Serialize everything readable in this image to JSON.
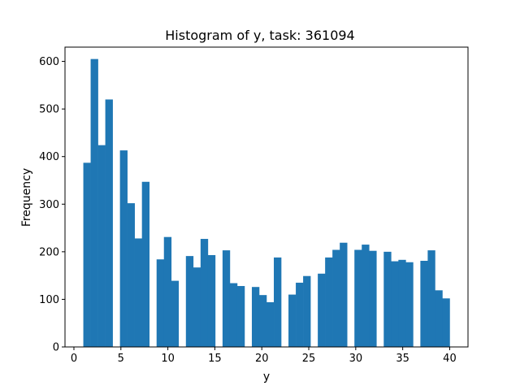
{
  "chart_data": {
    "type": "bar",
    "title": "Histogram of y, task: 361094",
    "xlabel": "y",
    "ylabel": "Frequency",
    "xlim": [
      -0.95,
      41.95
    ],
    "ylim": [
      0,
      630
    ],
    "xticks": [
      0,
      5,
      10,
      15,
      20,
      25,
      30,
      35,
      40
    ],
    "yticks": [
      0,
      100,
      200,
      300,
      400,
      500,
      600
    ],
    "grid": false,
    "color": "#1f77b4",
    "bin_start": 1,
    "bin_width": 0.78,
    "values": [
      387,
      605,
      424,
      520,
      0,
      413,
      302,
      228,
      347,
      0,
      184,
      231,
      139,
      0,
      191,
      167,
      227,
      193,
      0,
      203,
      134,
      128,
      0,
      126,
      109,
      94,
      188,
      0,
      110,
      135,
      149,
      0,
      154,
      188,
      204,
      219,
      0,
      204,
      215,
      202,
      0,
      200,
      180,
      183,
      178,
      0,
      181,
      203,
      119,
      102
    ]
  }
}
